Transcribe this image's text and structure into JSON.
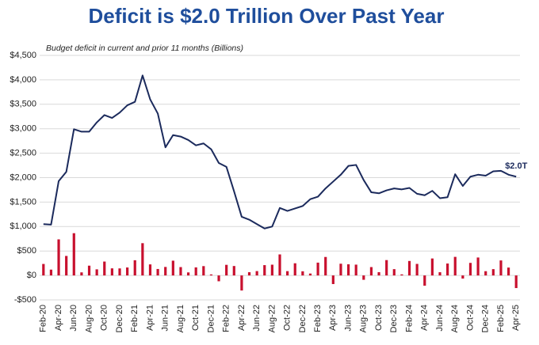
{
  "chart_data": {
    "type": "line-bar",
    "title": "Deficit is $2.0 Trillion Over Past Year",
    "subtitle": "Budget deficit in current and prior 11 months (Billions)",
    "annotation": "$2.0T",
    "categories": [
      "Feb-20",
      null,
      "Apr-20",
      null,
      "Jun-20",
      null,
      "Aug-20",
      null,
      "Oct-20",
      null,
      "Dec-20",
      null,
      "Feb-21",
      null,
      "Apr-21",
      null,
      "Jun-21",
      null,
      "Aug-21",
      null,
      "Oct-21",
      null,
      "Dec-21",
      null,
      "Feb-22",
      null,
      "Apr-22",
      null,
      "Jun-22",
      null,
      "Aug-22",
      null,
      "Oct-22",
      null,
      "Dec-22",
      null,
      "Feb-23",
      null,
      "Apr-23",
      null,
      "Jun-23",
      null,
      "Aug-23",
      null,
      "Oct-23",
      null,
      "Dec-23",
      null,
      "Feb-24",
      null,
      "Apr-24",
      null,
      "Jun-24",
      null,
      "Aug-24",
      null,
      "Oct-24",
      null,
      "Dec-24",
      null,
      "Feb-25",
      null,
      "Apr-25"
    ],
    "series": [
      {
        "type": "line",
        "color": "#1b2a5c",
        "values": [
          1050,
          1040,
          1930,
          2120,
          2990,
          2940,
          2940,
          3130,
          3280,
          3220,
          3330,
          3480,
          3550,
          4090,
          3600,
          3310,
          2620,
          2870,
          2840,
          2770,
          2660,
          2700,
          2580,
          2300,
          2220,
          1720,
          1200,
          1140,
          1050,
          960,
          1000,
          1380,
          1320,
          1370,
          1420,
          1560,
          1610,
          1780,
          1920,
          2060,
          2240,
          2260,
          1950,
          1700,
          1680,
          1740,
          1780,
          1760,
          1790,
          1670,
          1640,
          1730,
          1580,
          1600,
          2070,
          1830,
          2020,
          2060,
          2040,
          2130,
          2140,
          2060,
          2020
        ]
      },
      {
        "type": "bar",
        "color": "#c8102e",
        "values": [
          235,
          119,
          738,
          399,
          864,
          63,
          200,
          125,
          284,
          145,
          144,
          163,
          311,
          660,
          226,
          132,
          174,
          302,
          171,
          62,
          165,
          191,
          21,
          -119,
          217,
          193,
          -308,
          66,
          89,
          211,
          220,
          430,
          88,
          249,
          85,
          39,
          262,
          378,
          -176,
          240,
          228,
          221,
          -89,
          171,
          67,
          314,
          129,
          22,
          296,
          236,
          -210,
          347,
          66,
          244,
          380,
          -64,
          257,
          367,
          87,
          129,
          307,
          161,
          -258
        ]
      }
    ],
    "ylim": [
      -500,
      4500
    ],
    "yticks": [
      {
        "value": -500,
        "label": "-$500"
      },
      {
        "value": 0,
        "label": "$0"
      },
      {
        "value": 500,
        "label": "$500"
      },
      {
        "value": 1000,
        "label": "$1,000"
      },
      {
        "value": 1500,
        "label": "$1,500"
      },
      {
        "value": 2000,
        "label": "$2,000"
      },
      {
        "value": 2500,
        "label": "$2,500"
      },
      {
        "value": 3000,
        "label": "$3,000"
      },
      {
        "value": 3500,
        "label": "$3,500"
      },
      {
        "value": 4000,
        "label": "$4,000"
      },
      {
        "value": 4500,
        "label": "$4,500"
      }
    ],
    "grid": true
  }
}
